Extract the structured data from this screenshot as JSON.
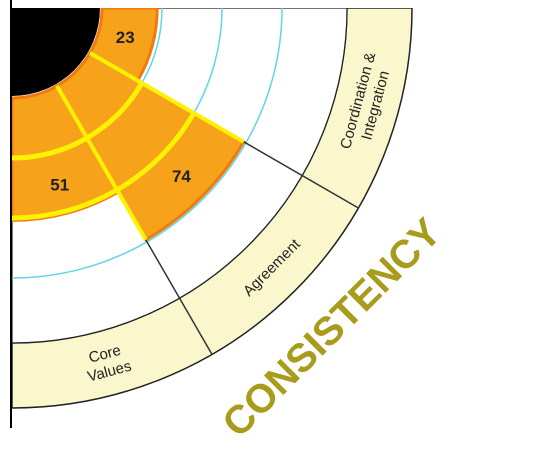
{
  "chart_data": {
    "type": "radial-bar",
    "group": "CONSISTENCY",
    "categories": [
      [
        "Core",
        "Values"
      ],
      [
        "Agreement"
      ],
      [
        "Coordination &",
        "Integration"
      ]
    ],
    "values": [
      51,
      74,
      23
    ],
    "rlim": [
      0,
      100
    ],
    "color": "#f7a21b"
  }
}
